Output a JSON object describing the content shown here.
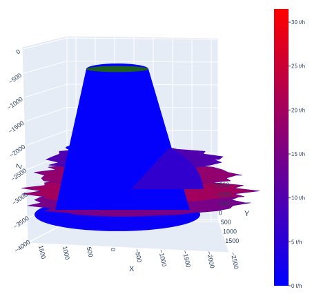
{
  "chart_data": {
    "type": "surface3d",
    "title": "",
    "x_axis": {
      "title": "X",
      "ticks": [
        "1500",
        "1000",
        "500",
        "0",
        "−500",
        "−1000",
        "−1500",
        "−2000",
        "−2500"
      ]
    },
    "y_axis": {
      "title": "Y",
      "ticks": [
        "−1500",
        "−1000",
        "−500",
        "0",
        "500",
        "1000",
        "1500"
      ]
    },
    "z_axis": {
      "title": "Z",
      "ticks": [
        "0",
        "−500",
        "−1000",
        "−1500",
        "−2000",
        "−2500",
        "−3000",
        "−3500",
        "−4000"
      ],
      "range": [
        -4000,
        0
      ]
    },
    "colorbar": {
      "ticks": [
        "0 t/h",
        "5 t/h",
        "10 t/h",
        "15 t/h",
        "20 t/h",
        "25 t/h",
        "30 t/h"
      ],
      "values": [
        0,
        5,
        10,
        15,
        20,
        25,
        30
      ],
      "range": [
        0,
        31.5
      ],
      "colorscale": [
        "#0000ff",
        "#ff0000"
      ]
    },
    "cap_color": "#1f5f1f",
    "grid": true,
    "series": [
      {
        "kind": "ellipse",
        "surface": "cone",
        "z": 0,
        "radius": 600,
        "value": 0
      },
      {
        "kind": "ellipse",
        "surface": "cone",
        "z": -1200,
        "radius": 800,
        "value": 0.5
      },
      {
        "kind": "ellipse",
        "surface": "cone",
        "z": -2000,
        "radius": 1000,
        "value": 1
      },
      {
        "kind": "blob",
        "surface": "plume",
        "z": -2300,
        "radius": 1400,
        "value": 10
      },
      {
        "kind": "blob",
        "surface": "plume",
        "z": -2700,
        "radius": 1600,
        "value": 18
      },
      {
        "kind": "blob",
        "surface": "plume",
        "z": -3100,
        "radius": 1800,
        "value": 20
      },
      {
        "kind": "blob",
        "surface": "plume",
        "z": -3400,
        "radius": 1700,
        "value": 15
      },
      {
        "kind": "ellipse",
        "surface": "base",
        "z": -3700,
        "radius": 1600,
        "value": 1
      }
    ]
  }
}
